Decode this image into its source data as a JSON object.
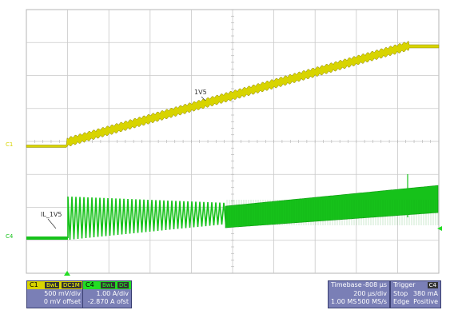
{
  "colors": {
    "grid": "#c9c9c9",
    "ch1": "#d8d400",
    "ch1_dark": "#8a8400",
    "ch4": "#16c21a",
    "panel_bg": "#7a7fb6",
    "ch1_tag": "#d8d400",
    "ch4_tag": "#22dd22"
  },
  "scope": {
    "ch1_marker": "C1",
    "ch4_marker": "C4",
    "label_1v5": "1V5",
    "label_il": "IL_1V5",
    "trigger_marker_icon": "triangle-up",
    "level_marker_icon": "triangle-left"
  },
  "ch1_panel": {
    "name": "C1",
    "tags": [
      "BwL",
      "DC1M"
    ],
    "volts_div": "500 mV/div",
    "offset": "0 mV offset"
  },
  "ch4_panel": {
    "name": "C4",
    "tags": [
      "BwL",
      "DC"
    ],
    "amps_div": "1.00 A/div",
    "offset": "-2.870 A ofst"
  },
  "timebase": {
    "label": "Timebase",
    "delay": "-808 µs",
    "time_div": "200 µs/div",
    "memory": "1.00 MS",
    "sample_rate": "500 MS/s"
  },
  "trigger": {
    "label": "Trigger",
    "source": "C4",
    "mode": "Stop",
    "level": "380 mA",
    "type": "Edge",
    "slope": "Positive"
  }
}
